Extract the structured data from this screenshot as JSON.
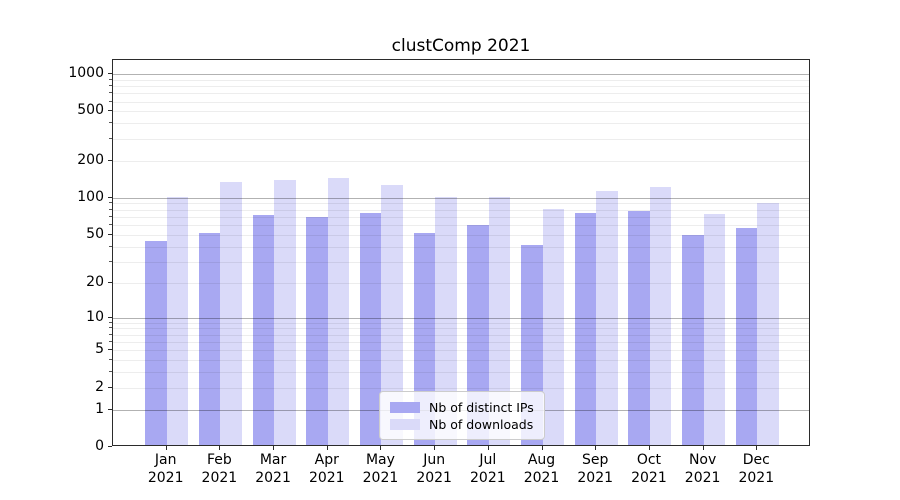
{
  "chart_data": {
    "type": "bar",
    "title": "clustComp 2021",
    "categories": [
      "Jan",
      "Feb",
      "Mar",
      "Apr",
      "May",
      "Jun",
      "Jul",
      "Aug",
      "Sep",
      "Oct",
      "Nov",
      "Dec"
    ],
    "category_year": "2021",
    "series": [
      {
        "name": "Nb of distinct IPs",
        "color": "#a8a8f2",
        "values": [
          43,
          50,
          70,
          67,
          72,
          50,
          58,
          40,
          72,
          75,
          48,
          55
        ]
      },
      {
        "name": "Nb of downloads",
        "color": "#dadaf9",
        "values": [
          97,
          130,
          135,
          139,
          123,
          97,
          97,
          78,
          110,
          118,
          71,
          88
        ]
      }
    ],
    "yscale": "log1p",
    "ylim": [
      0,
      1297
    ],
    "yticks": [
      0,
      1,
      2,
      5,
      10,
      20,
      50,
      100,
      200,
      500,
      1000
    ],
    "yticks_minor": [
      3,
      4,
      6,
      7,
      8,
      9,
      30,
      40,
      60,
      70,
      80,
      90,
      300,
      400,
      600,
      700,
      800,
      900
    ],
    "grid": "both",
    "xlabel": "",
    "ylabel": "",
    "legend_position": "lower center"
  }
}
